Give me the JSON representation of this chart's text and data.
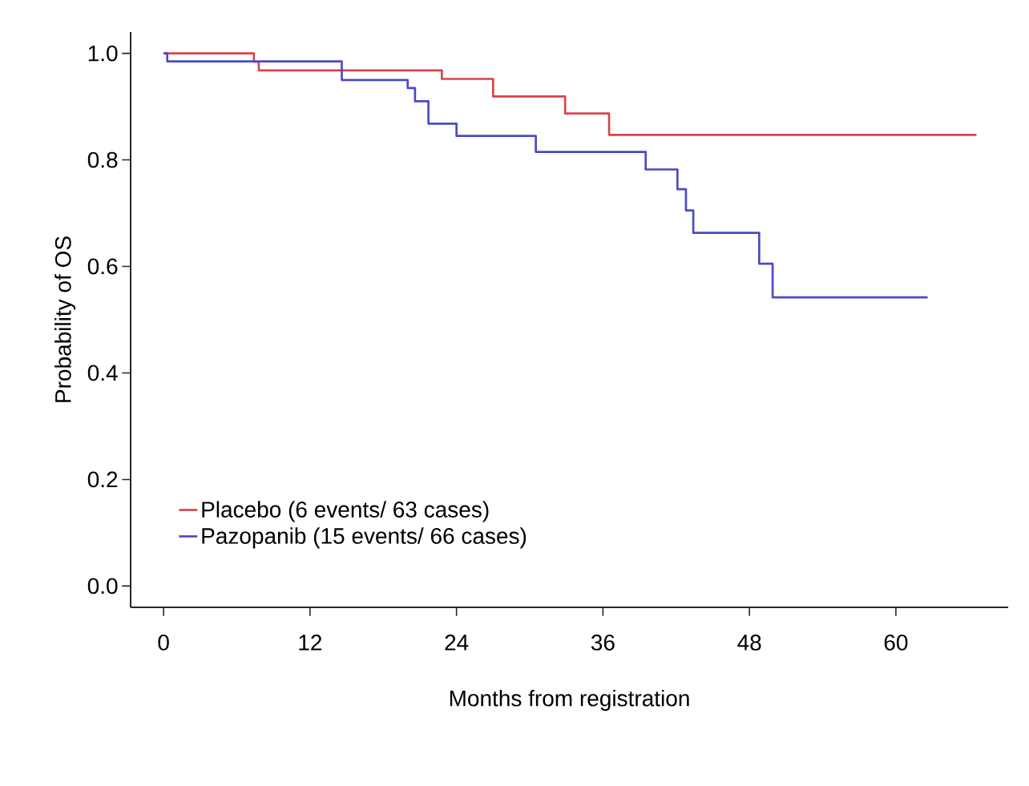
{
  "chart_data": {
    "type": "step",
    "xlabel": "Months from registration",
    "ylabel": "Probability of OS",
    "xlim": [
      -2.7,
      69.2
    ],
    "ylim": [
      -0.04,
      1.04
    ],
    "xticks": [
      0,
      12,
      24,
      36,
      48,
      60
    ],
    "yticks": [
      {
        "value": 0,
        "label": "0.0"
      },
      {
        "value": 0.2,
        "label": "0.2"
      },
      {
        "value": 0.4,
        "label": "0.4"
      },
      {
        "value": 0.6,
        "label": "0.6"
      },
      {
        "value": 0.8,
        "label": "0.8"
      },
      {
        "value": 1,
        "label": "1.0"
      }
    ],
    "legend": "bottom left",
    "grid": false,
    "series": [
      {
        "name": "Placebo  (6 events/ 63 cases)",
        "color": "#d9434b",
        "x": [
          0,
          7.4,
          7.8,
          22.8,
          27.0,
          32.9,
          36.5,
          66.6
        ],
        "values": [
          1,
          0.984,
          0.968,
          0.952,
          0.919,
          0.887,
          0.847,
          0.847
        ]
      },
      {
        "name": "Pazopanib  (15 events/ 66 cases)",
        "color": "#4a4ac8",
        "x": [
          0,
          0.3,
          14.6,
          20.0,
          20.6,
          21.7,
          24.0,
          30.5,
          39.5,
          42.1,
          42.8,
          43.4,
          48.8,
          49.9,
          62.6
        ],
        "values": [
          1,
          0.985,
          0.95,
          0.935,
          0.91,
          0.868,
          0.845,
          0.815,
          0.782,
          0.745,
          0.705,
          0.663,
          0.605,
          0.542,
          0.542
        ]
      }
    ]
  }
}
